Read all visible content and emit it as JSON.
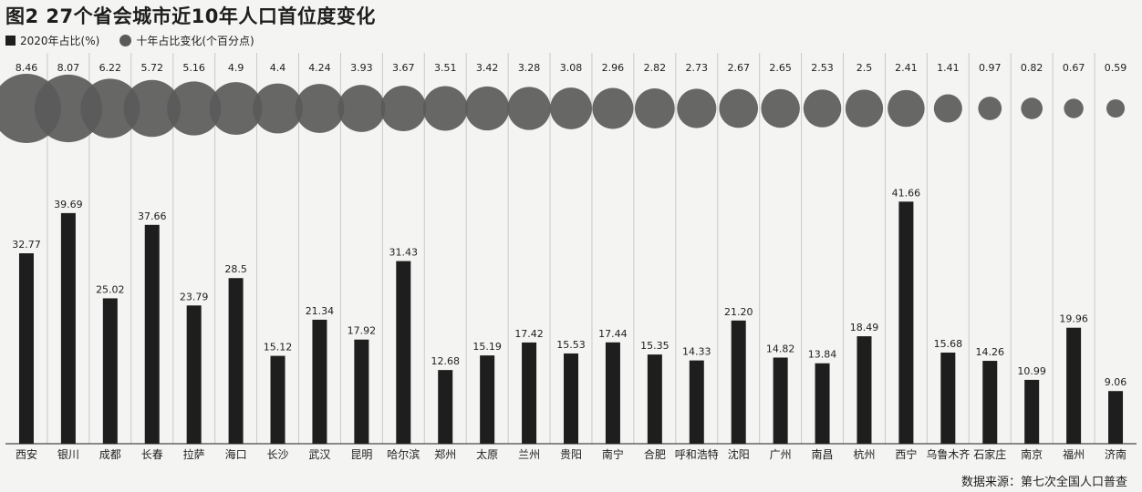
{
  "title": "图2 27个省会城市近10年人口首位度变化",
  "legend": {
    "bar_label": "2020年占比(%)",
    "bubble_label": "十年占比变化(个百分点)"
  },
  "source": "数据来源：第七次全国人口普查",
  "colors": {
    "background": "#f4f4f2",
    "bar": "#1e1e1e",
    "bubble": "#5a5a5a"
  },
  "chart_data": {
    "type": "bar",
    "title": "图2 27个省会城市近10年人口首位度变化",
    "categories": [
      "西安",
      "银川",
      "成都",
      "长春",
      "拉萨",
      "海口",
      "长沙",
      "武汉",
      "昆明",
      "哈尔滨",
      "郑州",
      "太原",
      "兰州",
      "贵阳",
      "南宁",
      "合肥",
      "呼和浩特",
      "沈阳",
      "广州",
      "南昌",
      "杭州",
      "西宁",
      "乌鲁木齐",
      "石家庄",
      "南京",
      "福州",
      "济南"
    ],
    "series": [
      {
        "name": "2020年占比(%)",
        "display": "bars",
        "labels": [
          "32.77",
          "39.69",
          "25.02",
          "37.66",
          "23.79",
          "28.5",
          "15.12",
          "21.34",
          "17.92",
          "31.43",
          "12.68",
          "15.19",
          "17.42",
          "15.53",
          "17.44",
          "15.35",
          "14.33",
          "21.20",
          "14.82",
          "13.84",
          "18.49",
          "41.66",
          "15.68",
          "14.26",
          "10.99",
          "19.96",
          "9.06"
        ],
        "values": [
          32.77,
          39.69,
          25.02,
          37.66,
          23.79,
          28.5,
          15.12,
          21.34,
          17.92,
          31.43,
          12.68,
          15.19,
          17.42,
          15.53,
          17.44,
          15.35,
          14.33,
          21.2,
          14.82,
          13.84,
          18.49,
          41.66,
          15.68,
          14.26,
          10.99,
          19.96,
          9.06
        ]
      },
      {
        "name": "十年占比变化(个百分点)",
        "display": "bubbles",
        "labels": [
          "8.46",
          "8.07",
          "6.22",
          "5.72",
          "5.16",
          "4.9",
          "4.4",
          "4.24",
          "3.93",
          "3.67",
          "3.51",
          "3.42",
          "3.28",
          "3.08",
          "2.96",
          "2.82",
          "2.73",
          "2.67",
          "2.65",
          "2.53",
          "2.5",
          "2.41",
          "1.41",
          "0.97",
          "0.82",
          "0.67",
          "0.59"
        ],
        "values": [
          8.46,
          8.07,
          6.22,
          5.72,
          5.16,
          4.9,
          4.4,
          4.24,
          3.93,
          3.67,
          3.51,
          3.42,
          3.28,
          3.08,
          2.96,
          2.82,
          2.73,
          2.67,
          2.65,
          2.53,
          2.5,
          2.41,
          1.41,
          0.97,
          0.82,
          0.67,
          0.59
        ]
      }
    ],
    "ylim": [
      0,
      45
    ],
    "grid": true,
    "legend_position": "top-left"
  }
}
